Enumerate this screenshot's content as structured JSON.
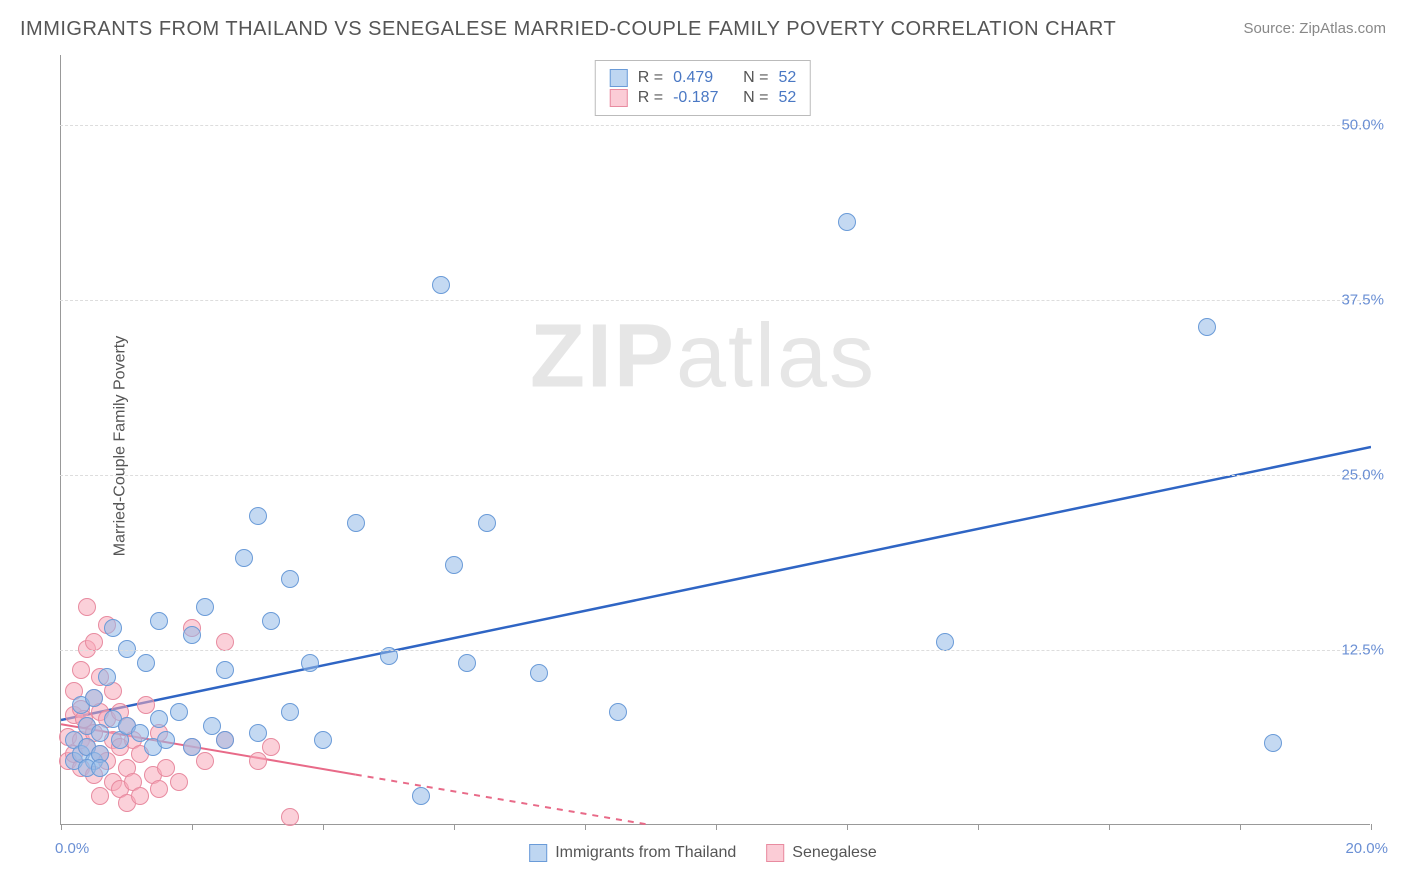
{
  "title": "IMMIGRANTS FROM THAILAND VS SENEGALESE MARRIED-COUPLE FAMILY POVERTY CORRELATION CHART",
  "source": "Source: ZipAtlas.com",
  "watermark_zip": "ZIP",
  "watermark_atlas": "atlas",
  "y_axis_label": "Married-Couple Family Poverty",
  "chart": {
    "type": "scatter",
    "xlim": [
      0,
      20
    ],
    "ylim": [
      0,
      55
    ],
    "x_unit": "%",
    "y_unit": "%",
    "x_tick_labels": {
      "min": "0.0%",
      "max": "20.0%"
    },
    "y_ticks": [
      12.5,
      25.0,
      37.5,
      50.0
    ],
    "y_tick_labels": [
      "12.5%",
      "25.0%",
      "37.5%",
      "50.0%"
    ],
    "x_tick_positions": [
      0,
      2,
      4,
      6,
      8,
      10,
      12,
      14,
      16,
      18,
      20
    ],
    "background_color": "#ffffff",
    "grid_color": "#dddddd",
    "axis_color": "#999999",
    "marker_radius": 9,
    "series": [
      {
        "name": "Immigrants from Thailand",
        "color_fill": "rgba(147,186,232,0.55)",
        "color_stroke": "#6a9bd8",
        "trend_color": "#2f65c4",
        "trend_width": 2.5,
        "r": "0.479",
        "n": "52",
        "trend": {
          "x1": 0,
          "y1": 7.5,
          "x2": 20,
          "y2": 27.0,
          "dash": false
        },
        "points": [
          [
            0.2,
            4.5
          ],
          [
            0.2,
            6.0
          ],
          [
            0.3,
            5.0
          ],
          [
            0.3,
            8.5
          ],
          [
            0.4,
            5.5
          ],
          [
            0.4,
            7.0
          ],
          [
            0.5,
            4.5
          ],
          [
            0.5,
            9.0
          ],
          [
            0.6,
            6.5
          ],
          [
            0.6,
            5.0
          ],
          [
            0.7,
            10.5
          ],
          [
            0.8,
            7.5
          ],
          [
            0.8,
            14.0
          ],
          [
            0.9,
            6.0
          ],
          [
            1.0,
            7.0
          ],
          [
            1.0,
            12.5
          ],
          [
            1.2,
            6.5
          ],
          [
            1.3,
            11.5
          ],
          [
            1.4,
            5.5
          ],
          [
            1.5,
            7.5
          ],
          [
            1.5,
            14.5
          ],
          [
            1.6,
            6.0
          ],
          [
            1.8,
            8.0
          ],
          [
            2.0,
            5.5
          ],
          [
            2.0,
            13.5
          ],
          [
            2.2,
            15.5
          ],
          [
            2.3,
            7.0
          ],
          [
            2.5,
            6.0
          ],
          [
            2.5,
            11.0
          ],
          [
            2.8,
            19.0
          ],
          [
            3.0,
            6.5
          ],
          [
            3.0,
            22.0
          ],
          [
            3.2,
            14.5
          ],
          [
            3.5,
            8.0
          ],
          [
            3.5,
            17.5
          ],
          [
            3.8,
            11.5
          ],
          [
            4.0,
            6.0
          ],
          [
            4.5,
            21.5
          ],
          [
            5.0,
            12.0
          ],
          [
            5.5,
            2.0
          ],
          [
            5.8,
            38.5
          ],
          [
            6.0,
            18.5
          ],
          [
            6.2,
            11.5
          ],
          [
            6.5,
            21.5
          ],
          [
            7.3,
            10.8
          ],
          [
            8.5,
            8.0
          ],
          [
            12.0,
            43.0
          ],
          [
            13.5,
            13.0
          ],
          [
            17.5,
            35.5
          ],
          [
            18.5,
            5.8
          ],
          [
            0.4,
            4.0
          ],
          [
            0.6,
            4.0
          ]
        ]
      },
      {
        "name": "Senegalese",
        "color_fill": "rgba(248,170,186,0.55)",
        "color_stroke": "#e88ba0",
        "trend_color": "#e86a88",
        "trend_width": 2,
        "r": "-0.187",
        "n": "52",
        "trend": {
          "x1": 0,
          "y1": 7.2,
          "x2": 9.0,
          "y2": 0.0,
          "dash": true,
          "dash_after": 4.5
        },
        "points": [
          [
            0.1,
            4.5
          ],
          [
            0.1,
            6.2
          ],
          [
            0.2,
            5.0
          ],
          [
            0.2,
            7.8
          ],
          [
            0.2,
            9.5
          ],
          [
            0.3,
            4.0
          ],
          [
            0.3,
            6.0
          ],
          [
            0.3,
            8.2
          ],
          [
            0.3,
            11.0
          ],
          [
            0.4,
            5.5
          ],
          [
            0.4,
            7.0
          ],
          [
            0.4,
            12.5
          ],
          [
            0.4,
            15.5
          ],
          [
            0.5,
            3.5
          ],
          [
            0.5,
            6.5
          ],
          [
            0.5,
            9.0
          ],
          [
            0.5,
            13.0
          ],
          [
            0.6,
            2.0
          ],
          [
            0.6,
            5.0
          ],
          [
            0.6,
            8.0
          ],
          [
            0.6,
            10.5
          ],
          [
            0.7,
            4.5
          ],
          [
            0.7,
            7.5
          ],
          [
            0.7,
            14.2
          ],
          [
            0.8,
            3.0
          ],
          [
            0.8,
            6.0
          ],
          [
            0.8,
            9.5
          ],
          [
            0.9,
            2.5
          ],
          [
            0.9,
            5.5
          ],
          [
            0.9,
            8.0
          ],
          [
            1.0,
            1.5
          ],
          [
            1.0,
            4.0
          ],
          [
            1.0,
            7.0
          ],
          [
            1.1,
            3.0
          ],
          [
            1.1,
            6.0
          ],
          [
            1.2,
            2.0
          ],
          [
            1.2,
            5.0
          ],
          [
            1.3,
            8.5
          ],
          [
            1.4,
            3.5
          ],
          [
            1.5,
            2.5
          ],
          [
            1.5,
            6.5
          ],
          [
            1.6,
            4.0
          ],
          [
            1.8,
            3.0
          ],
          [
            2.0,
            5.5
          ],
          [
            2.0,
            14.0
          ],
          [
            2.2,
            4.5
          ],
          [
            2.5,
            6.0
          ],
          [
            2.5,
            13.0
          ],
          [
            3.0,
            4.5
          ],
          [
            3.2,
            5.5
          ],
          [
            3.5,
            0.5
          ],
          [
            0.35,
            7.5
          ]
        ]
      }
    ]
  },
  "legend_top": {
    "rows": [
      {
        "swatch": "sw1",
        "r_label": "R =",
        "r": "0.479",
        "n_label": "N =",
        "n": "52"
      },
      {
        "swatch": "sw2",
        "r_label": "R =",
        "r": "-0.187",
        "n_label": "N =",
        "n": "52"
      }
    ]
  },
  "legend_bottom": {
    "items": [
      {
        "swatch": "sw1",
        "label": "Immigrants from Thailand"
      },
      {
        "swatch": "sw2",
        "label": "Senegalese"
      }
    ]
  }
}
